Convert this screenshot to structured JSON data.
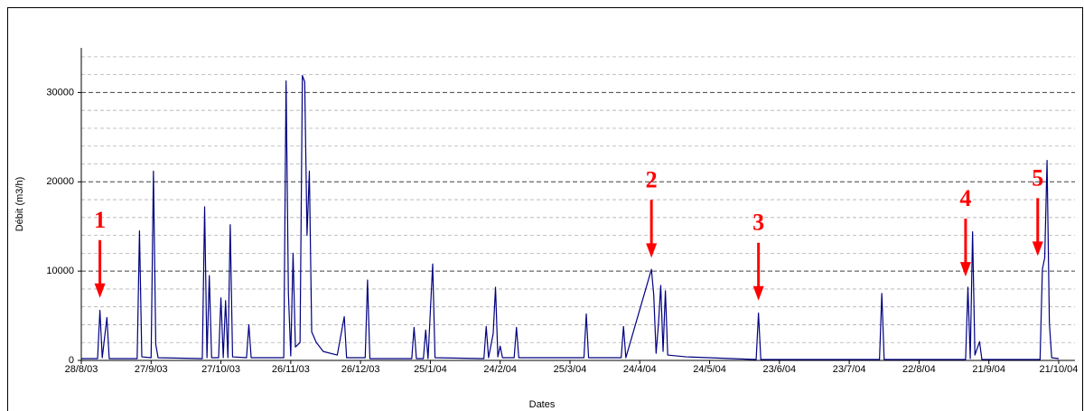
{
  "chart_data": {
    "type": "line",
    "xlabel": "Dates",
    "ylabel": "Débit (m3/h)",
    "ylim": [
      0,
      35000
    ],
    "yticks": [
      0,
      10000,
      20000,
      30000
    ],
    "yminor": [
      2000,
      4000,
      6000,
      8000,
      12000,
      14000,
      16000,
      18000,
      22000,
      24000,
      26000,
      28000,
      32000,
      34000
    ],
    "grid": true,
    "xlim": [
      "2003-08-28",
      "2004-10-28"
    ],
    "xticks": [
      {
        "value": "2003-08-28",
        "label": "28/8/03"
      },
      {
        "value": "2003-09-27",
        "label": "27/9/03"
      },
      {
        "value": "2003-10-27",
        "label": "27/10/03"
      },
      {
        "value": "2003-11-26",
        "label": "26/11/03"
      },
      {
        "value": "2003-12-26",
        "label": "26/12/03"
      },
      {
        "value": "2004-01-25",
        "label": "25/1/04"
      },
      {
        "value": "2004-02-24",
        "label": "24/2/04"
      },
      {
        "value": "2004-03-25",
        "label": "25/3/04"
      },
      {
        "value": "2004-04-24",
        "label": "24/4/04"
      },
      {
        "value": "2004-05-24",
        "label": "24/5/04"
      },
      {
        "value": "2004-06-23",
        "label": "23/6/04"
      },
      {
        "value": "2004-07-23",
        "label": "23/7/04"
      },
      {
        "value": "2004-08-22",
        "label": "22/8/04"
      },
      {
        "value": "2004-09-21",
        "label": "21/9/04"
      },
      {
        "value": "2004-10-21",
        "label": "21/10/04"
      }
    ],
    "x": [
      "2003-08-28",
      "2003-09-04",
      "2003-09-05",
      "2003-09-06",
      "2003-09-08",
      "2003-09-09",
      "2003-09-21",
      "2003-09-22",
      "2003-09-23",
      "2003-09-27",
      "2003-09-28",
      "2003-09-29",
      "2003-09-30",
      "2003-10-19",
      "2003-10-20",
      "2003-10-21",
      "2003-10-22",
      "2003-10-23",
      "2003-10-26",
      "2003-10-27",
      "2003-10-28",
      "2003-10-29",
      "2003-10-30",
      "2003-10-31",
      "2003-11-01",
      "2003-11-07",
      "2003-11-08",
      "2003-11-09",
      "2003-11-23",
      "2003-11-24",
      "2003-11-25",
      "2003-11-26",
      "2003-11-27",
      "2003-11-28",
      "2003-11-30",
      "2003-12-01",
      "2003-12-02",
      "2003-12-03",
      "2003-12-04",
      "2003-12-05",
      "2003-12-07",
      "2003-12-10",
      "2003-12-16",
      "2003-12-19",
      "2003-12-20",
      "2003-12-28",
      "2003-12-29",
      "2003-12-30",
      "2004-01-17",
      "2004-01-18",
      "2004-01-19",
      "2004-01-22",
      "2004-01-23",
      "2004-01-24",
      "2004-01-26",
      "2004-01-27",
      "2004-02-17",
      "2004-02-18",
      "2004-02-19",
      "2004-02-21",
      "2004-02-22",
      "2004-02-23",
      "2004-02-24",
      "2004-02-25",
      "2004-03-01",
      "2004-03-02",
      "2004-03-03",
      "2004-03-31",
      "2004-04-01",
      "2004-04-02",
      "2004-04-16",
      "2004-04-17",
      "2004-04-18",
      "2004-04-29",
      "2004-04-30",
      "2004-05-01",
      "2004-05-02",
      "2004-05-03",
      "2004-05-04",
      "2004-05-05",
      "2004-05-06",
      "2004-05-14",
      "2004-06-13",
      "2004-06-14",
      "2004-06-15",
      "2004-08-05",
      "2004-08-06",
      "2004-08-07",
      "2004-09-11",
      "2004-09-12",
      "2004-09-13",
      "2004-09-14",
      "2004-09-15",
      "2004-09-17",
      "2004-09-18",
      "2004-10-13",
      "2004-10-14",
      "2004-10-15",
      "2004-10-16",
      "2004-10-17",
      "2004-10-18",
      "2004-10-21"
    ],
    "series": [
      {
        "name": "Débit",
        "color": "#000080",
        "values": [
          200,
          200,
          5600,
          300,
          4800,
          200,
          200,
          14500,
          400,
          300,
          21200,
          1800,
          300,
          200,
          17200,
          300,
          9500,
          300,
          300,
          7000,
          300,
          6700,
          300,
          15200,
          400,
          300,
          4000,
          300,
          300,
          31300,
          7500,
          500,
          12000,
          1500,
          2000,
          31900,
          31200,
          14000,
          21200,
          3200,
          2000,
          1000,
          600,
          4900,
          300,
          300,
          9000,
          200,
          200,
          3700,
          200,
          200,
          3400,
          200,
          10800,
          300,
          200,
          3800,
          300,
          3000,
          8200,
          400,
          1600,
          300,
          300,
          3700,
          300,
          300,
          5200,
          300,
          300,
          3800,
          300,
          10200,
          7300,
          800,
          4000,
          8400,
          1000,
          7800,
          600,
          400,
          100,
          5300,
          100,
          100,
          7500,
          100,
          100,
          8200,
          200,
          14400,
          600,
          2100,
          100,
          100,
          10200,
          11500,
          22400,
          4200,
          300,
          200
        ]
      }
    ],
    "annotations": [
      {
        "text": "1",
        "x": "2003-09-05",
        "y": 7000
      },
      {
        "text": "2",
        "x": "2004-04-29",
        "y": 11500
      },
      {
        "text": "3",
        "x": "2004-06-14",
        "y": 6700
      },
      {
        "text": "4",
        "x": "2004-09-11",
        "y": 9400
      },
      {
        "text": "5",
        "x": "2004-10-12",
        "y": 11700
      }
    ]
  }
}
